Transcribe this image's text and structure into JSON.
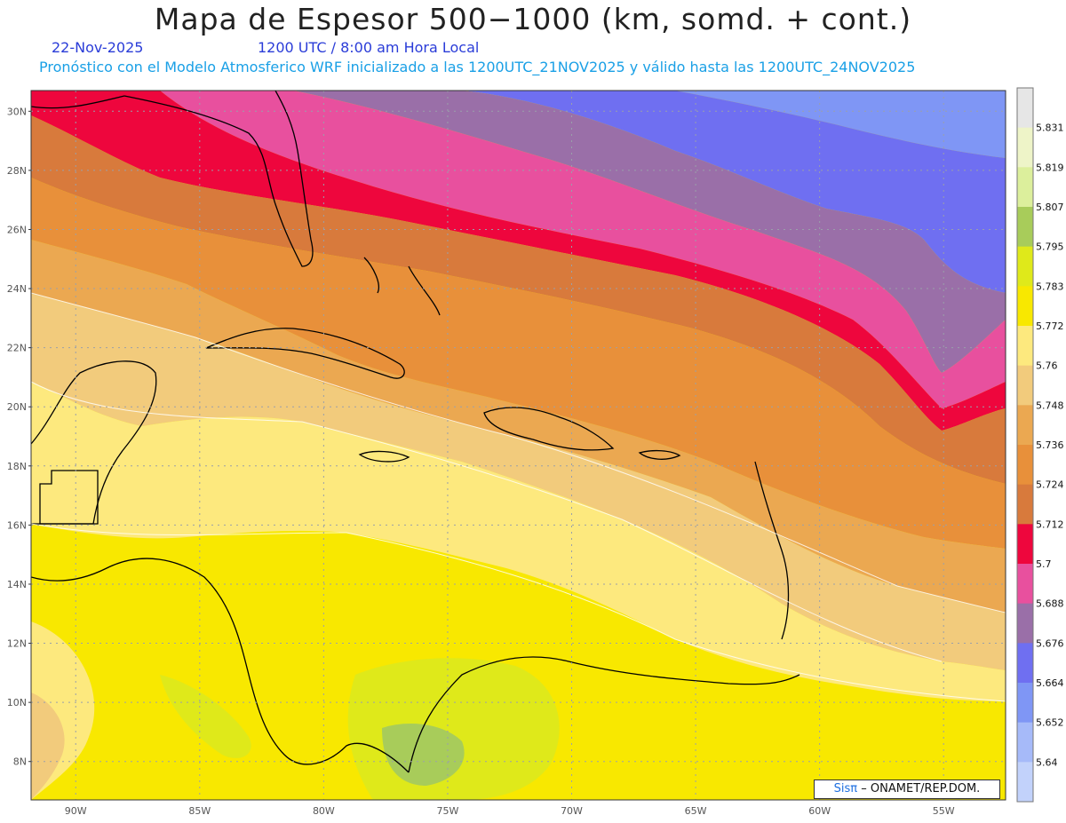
{
  "header": {
    "title": "Mapa de Espesor 500−1000 (km, somd. + cont.)",
    "date": "22-Nov-2025",
    "time": "1200 UTC / 8:00 am Hora Local",
    "forecast": "Pronóstico con el Modelo Atmosferico WRF inicializado a las 1200UTC_21NOV2025 y válido hasta las  1200UTC_24NOV2025"
  },
  "map": {
    "lat_labels": [
      "30N",
      "28N",
      "26N",
      "24N",
      "22N",
      "20N",
      "18N",
      "16N",
      "14N",
      "12N",
      "10N",
      "8N"
    ],
    "lon_labels": [
      "90W",
      "85W",
      "80W",
      "75W",
      "70W",
      "65W",
      "60W",
      "55W"
    ],
    "lon_range": [
      -91.8,
      -52.5
    ],
    "lat_range": [
      6.7,
      30.7
    ]
  },
  "colorbar": {
    "levels": [
      "5.831",
      "5.819",
      "5.807",
      "5.795",
      "5.783",
      "5.772",
      "5.76",
      "5.748",
      "5.736",
      "5.724",
      "5.712",
      "5.7",
      "5.688",
      "5.676",
      "5.664",
      "5.652",
      "5.64"
    ],
    "colors": [
      "#e6e6e6",
      "#eef4c8",
      "#dcef9c",
      "#a8cc5a",
      "#dfe91a",
      "#f8e800",
      "#fde97e",
      "#f2cb7c",
      "#eba851",
      "#e8903a",
      "#d87a3c",
      "#ee063d",
      "#e8509e",
      "#9a6fa8",
      "#6f6ff1",
      "#7f96f5",
      "#a6baf9",
      "#c2d2fb"
    ],
    "colors_note": "top to bottom"
  },
  "credit": {
    "sis": "Sisπ",
    "rest": "– ONAMET/REP.DOM."
  }
}
